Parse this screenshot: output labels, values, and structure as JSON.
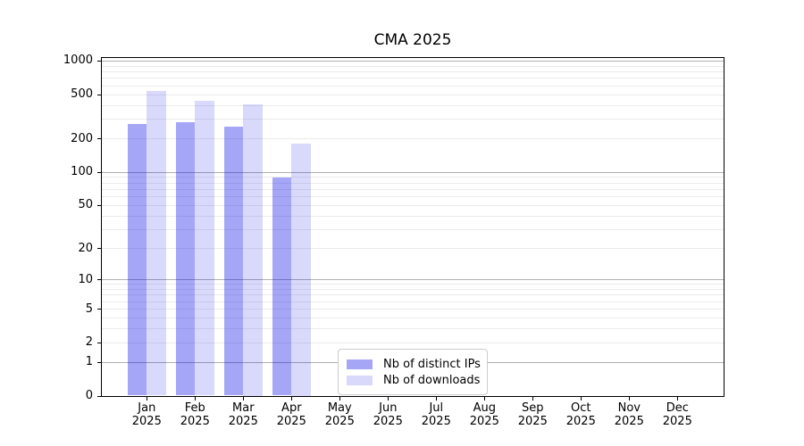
{
  "title": "CMA 2025",
  "legend": [
    {
      "label": "Nb of distinct IPs",
      "color": "rgba(0,0,230,0.35)"
    },
    {
      "label": "Nb of downloads",
      "color": "rgba(0,0,230,0.15)"
    }
  ],
  "chart_data": {
    "type": "bar",
    "title": "CMA 2025",
    "categories": [
      "Jan 2025",
      "Feb 2025",
      "Mar 2025",
      "Apr 2025",
      "May 2025",
      "Jun 2025",
      "Jul 2025",
      "Aug 2025",
      "Sep 2025",
      "Oct 2025",
      "Nov 2025",
      "Dec 2025"
    ],
    "series": [
      {
        "name": "Nb of distinct IPs",
        "color": "rgba(0,0,230,0.35)",
        "values": [
          270,
          280,
          256,
          88,
          null,
          null,
          null,
          null,
          null,
          null,
          null,
          null
        ]
      },
      {
        "name": "Nb of downloads",
        "color": "rgba(0,0,230,0.15)",
        "values": [
          535,
          437,
          404,
          181,
          null,
          null,
          null,
          null,
          null,
          null,
          null,
          null
        ]
      }
    ],
    "xlabel": "",
    "ylabel": "",
    "yscale": "log1p",
    "yticks": [
      0,
      1,
      2,
      5,
      10,
      20,
      50,
      100,
      200,
      500,
      1000
    ],
    "ylim": [
      0,
      1055
    ],
    "grid": "both",
    "legend_position": "lower center"
  }
}
